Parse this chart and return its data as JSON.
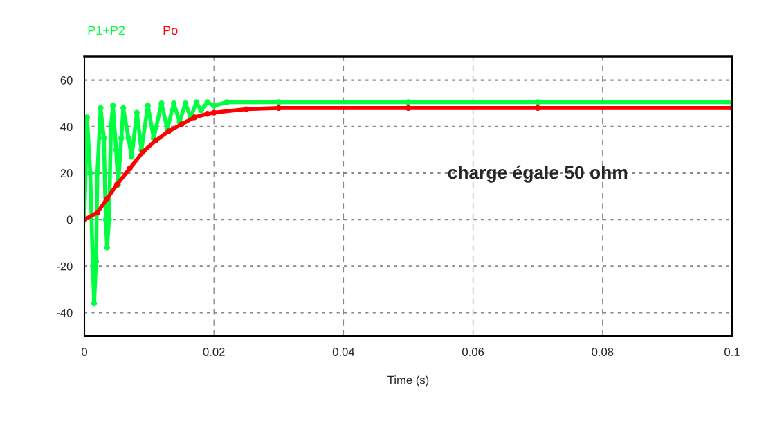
{
  "chart_data": {
    "type": "line",
    "xlabel": "Time (s)",
    "annotations": [
      "charge égale 50 ohm"
    ],
    "xlim": [
      0,
      0.1
    ],
    "ylim": [
      -50,
      70
    ],
    "xticks": [
      0,
      0.02,
      0.04,
      0.06,
      0.08,
      0.1
    ],
    "yticks": [
      -40,
      -20,
      0,
      20,
      40,
      60
    ],
    "grid": true,
    "legend": "top left",
    "marker": "circle",
    "series": [
      {
        "name": "P1+P2",
        "color": "#00ff40",
        "x": [
          0,
          0.0004,
          0.0009,
          0.0013,
          0.0015,
          0.0018,
          0.002,
          0.0025,
          0.003,
          0.0033,
          0.0035,
          0.0038,
          0.0041,
          0.0044,
          0.0049,
          0.0052,
          0.0057,
          0.006,
          0.0068,
          0.0073,
          0.0081,
          0.0088,
          0.0098,
          0.0107,
          0.0119,
          0.0128,
          0.0138,
          0.0147,
          0.0156,
          0.0164,
          0.0173,
          0.018,
          0.019,
          0.02,
          0.022,
          0.03,
          0.05,
          0.07,
          0.1
        ],
        "values": [
          0,
          44,
          20,
          -20,
          -36,
          -18,
          20,
          48,
          35,
          0,
          -12,
          0,
          40,
          49,
          30,
          15,
          35,
          48,
          35,
          27,
          46,
          30,
          49,
          35,
          50,
          39,
          50,
          42,
          50,
          44,
          50.5,
          47,
          50.5,
          49,
          50.5,
          50.5,
          50.5,
          50.5,
          50.5
        ]
      },
      {
        "name": "Po",
        "color": "#ff0000",
        "x": [
          0,
          0.002,
          0.0035,
          0.005,
          0.007,
          0.009,
          0.011,
          0.013,
          0.015,
          0.017,
          0.019,
          0.02,
          0.025,
          0.03,
          0.05,
          0.07,
          0.1
        ],
        "values": [
          0,
          3,
          9,
          15,
          22,
          29,
          34,
          38,
          41,
          44,
          45.5,
          46,
          47.5,
          48,
          48,
          48,
          48
        ]
      }
    ]
  }
}
